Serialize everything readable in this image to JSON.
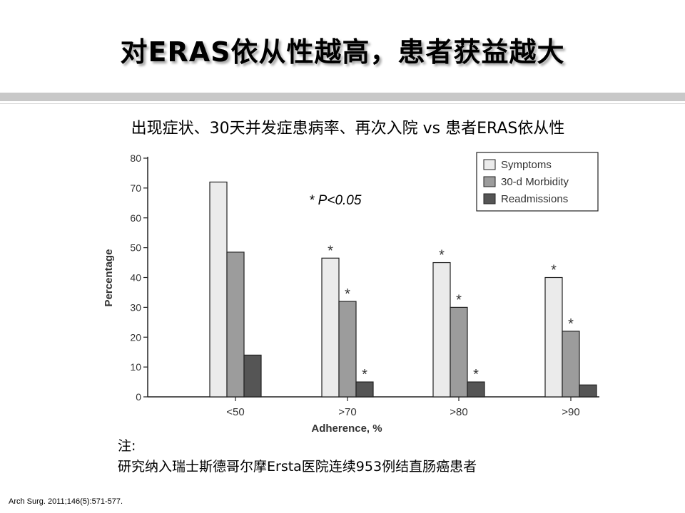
{
  "slide": {
    "title": "对ERAS依从性越高，患者获益越大",
    "subtitle": "出现症状、30天并发症患病率、再次入院 vs 患者ERAS依从性",
    "note_label": "注:",
    "note_text": "研究纳入瑞士斯德哥尔摩Ersta医院连续953例结直肠癌患者",
    "citation": "Arch Surg. 2011;146(5):571-577."
  },
  "chart_data": {
    "type": "bar",
    "categories": [
      "<50",
      ">70",
      ">80",
      ">90"
    ],
    "series": [
      {
        "name": "Symptoms",
        "values": [
          72,
          46.5,
          45,
          40
        ],
        "color": "#ebebeb",
        "significant": [
          false,
          true,
          true,
          true
        ]
      },
      {
        "name": "30-d Morbidity",
        "values": [
          48.5,
          32,
          30,
          22
        ],
        "color": "#9c9c9c",
        "significant": [
          false,
          true,
          true,
          true
        ]
      },
      {
        "name": "Readmissions",
        "values": [
          14,
          5,
          5,
          4
        ],
        "color": "#555555",
        "significant": [
          false,
          true,
          true,
          false
        ]
      }
    ],
    "xlabel": "Adherence, %",
    "ylabel": "Percentage",
    "ylim": [
      0,
      80
    ],
    "yticks": [
      "0",
      "10",
      "20",
      "30",
      "40",
      "50",
      "60",
      "70",
      "80"
    ],
    "significance_marker": "*",
    "annotation": "* P<0.05",
    "legend_position": "top-right",
    "grid": false
  }
}
